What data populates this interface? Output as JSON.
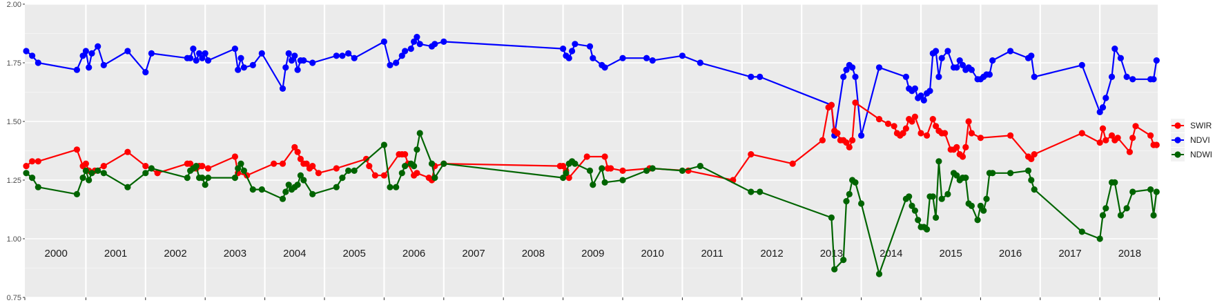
{
  "chart_data": {
    "type": "line",
    "title": "",
    "xlabel": "",
    "ylabel": "",
    "ylim": [
      0.75,
      2.0
    ],
    "xlim": [
      2000.0,
      2019.0
    ],
    "yticks": [
      "0.75",
      "1.00",
      "1.25",
      "1.50",
      "1.75",
      "2.00"
    ],
    "year_labels": [
      "2000",
      "2001",
      "2002",
      "2003",
      "2004",
      "2005",
      "2006",
      "2007",
      "2008",
      "2009",
      "2010",
      "2011",
      "2012",
      "2013",
      "2014",
      "2015",
      "2016",
      "2017",
      "2018"
    ],
    "grid": true,
    "legend_position": "right",
    "colors": {
      "SWIR": "#ff0000",
      "NDVI": "#0000ff",
      "NDWI": "#006400",
      "panel": "#ebebeb",
      "grid_major": "#ffffff"
    },
    "series": [
      {
        "name": "SWIR",
        "x": [
          2000.0,
          2000.1,
          2000.2,
          2000.85,
          2000.95,
          2001.0,
          2001.05,
          2001.15,
          2001.3,
          2001.7,
          2002.0,
          2002.2,
          2002.7,
          2002.75,
          2002.8,
          2002.85,
          2002.9,
          2002.95,
          2003.05,
          2003.5,
          2003.55,
          2003.7,
          2004.15,
          2004.3,
          2004.5,
          2004.55,
          2004.6,
          2004.65,
          2004.7,
          2004.75,
          2004.8,
          2004.9,
          2005.2,
          2005.7,
          2005.75,
          2005.85,
          2006.0,
          2006.25,
          2006.3,
          2006.35,
          2006.4,
          2006.5,
          2006.55,
          2006.75,
          2006.8,
          2006.85,
          2007.0,
          2008.95,
          2009.0,
          2009.05,
          2009.1,
          2009.4,
          2009.7,
          2009.75,
          2009.8,
          2010.0,
          2010.45,
          2011.1,
          2011.85,
          2012.15,
          2012.85,
          2013.35,
          2013.45,
          2013.5,
          2013.55,
          2013.6,
          2013.65,
          2013.7,
          2013.75,
          2013.8,
          2013.85,
          2013.9,
          2014.3,
          2014.45,
          2014.55,
          2014.6,
          2014.65,
          2014.7,
          2014.75,
          2014.8,
          2014.85,
          2014.9,
          2015.0,
          2015.1,
          2015.2,
          2015.25,
          2015.3,
          2015.35,
          2015.4,
          2015.5,
          2015.55,
          2015.6,
          2015.65,
          2015.7,
          2015.75,
          2015.8,
          2015.85,
          2016.0,
          2016.5,
          2016.8,
          2016.85,
          2016.9,
          2017.7,
          2018.0,
          2018.05,
          2018.1,
          2018.2,
          2018.25,
          2018.3,
          2018.5,
          2018.55,
          2018.6,
          2018.85,
          2018.9,
          2018.95
        ],
        "values": [
          1.31,
          1.33,
          1.33,
          1.38,
          1.31,
          1.32,
          1.29,
          1.29,
          1.31,
          1.37,
          1.31,
          1.28,
          1.32,
          1.32,
          1.3,
          1.3,
          1.31,
          1.31,
          1.3,
          1.35,
          1.28,
          1.27,
          1.32,
          1.32,
          1.39,
          1.37,
          1.34,
          1.32,
          1.32,
          1.3,
          1.31,
          1.28,
          1.3,
          1.34,
          1.31,
          1.27,
          1.27,
          1.36,
          1.36,
          1.36,
          1.32,
          1.27,
          1.28,
          1.26,
          1.25,
          1.31,
          1.32,
          1.31,
          1.31,
          1.29,
          1.26,
          1.35,
          1.35,
          1.3,
          1.3,
          1.29,
          1.3,
          1.29,
          1.25,
          1.36,
          1.32,
          1.42,
          1.56,
          1.57,
          1.46,
          1.45,
          1.42,
          1.42,
          1.41,
          1.39,
          1.42,
          1.58,
          1.51,
          1.49,
          1.48,
          1.45,
          1.44,
          1.45,
          1.47,
          1.51,
          1.5,
          1.52,
          1.45,
          1.44,
          1.51,
          1.48,
          1.46,
          1.45,
          1.45,
          1.38,
          1.38,
          1.39,
          1.36,
          1.35,
          1.39,
          1.5,
          1.45,
          1.43,
          1.44,
          1.35,
          1.34,
          1.36,
          1.45,
          1.41,
          1.47,
          1.42,
          1.44,
          1.42,
          1.43,
          1.37,
          1.43,
          1.48,
          1.44,
          1.4,
          1.4
        ]
      },
      {
        "name": "NDVI",
        "x": [
          2000.0,
          2000.1,
          2000.2,
          2000.85,
          2000.95,
          2001.0,
          2001.05,
          2001.1,
          2001.2,
          2001.3,
          2001.7,
          2002.0,
          2002.1,
          2002.7,
          2002.75,
          2002.8,
          2002.85,
          2002.9,
          2002.95,
          2003.0,
          2003.05,
          2003.5,
          2003.55,
          2003.6,
          2003.65,
          2003.8,
          2003.95,
          2004.3,
          2004.35,
          2004.4,
          2004.45,
          2004.5,
          2004.55,
          2004.6,
          2004.65,
          2004.8,
          2005.2,
          2005.3,
          2005.4,
          2005.5,
          2006.0,
          2006.1,
          2006.2,
          2006.3,
          2006.35,
          2006.45,
          2006.5,
          2006.55,
          2006.6,
          2006.8,
          2006.85,
          2007.0,
          2009.0,
          2009.05,
          2009.1,
          2009.15,
          2009.2,
          2009.45,
          2009.5,
          2009.65,
          2009.7,
          2010.0,
          2010.4,
          2010.5,
          2011.0,
          2011.3,
          2012.15,
          2012.3,
          2013.5,
          2013.55,
          2013.7,
          2013.75,
          2013.8,
          2013.85,
          2013.9,
          2014.0,
          2014.3,
          2014.75,
          2014.8,
          2014.85,
          2014.9,
          2014.95,
          2015.0,
          2015.05,
          2015.1,
          2015.15,
          2015.2,
          2015.25,
          2015.3,
          2015.35,
          2015.45,
          2015.55,
          2015.6,
          2015.65,
          2015.7,
          2015.75,
          2015.8,
          2015.85,
          2015.95,
          2016.0,
          2016.05,
          2016.1,
          2016.15,
          2016.2,
          2016.5,
          2016.8,
          2016.85,
          2016.9,
          2017.7,
          2018.0,
          2018.05,
          2018.1,
          2018.2,
          2018.25,
          2018.35,
          2018.45,
          2018.55,
          2018.85,
          2018.9,
          2018.95
        ],
        "values": [
          1.8,
          1.78,
          1.75,
          1.72,
          1.78,
          1.8,
          1.73,
          1.79,
          1.82,
          1.74,
          1.8,
          1.71,
          1.79,
          1.77,
          1.77,
          1.81,
          1.76,
          1.79,
          1.77,
          1.79,
          1.76,
          1.81,
          1.72,
          1.77,
          1.73,
          1.74,
          1.79,
          1.64,
          1.73,
          1.79,
          1.76,
          1.78,
          1.72,
          1.76,
          1.76,
          1.75,
          1.78,
          1.78,
          1.79,
          1.77,
          1.84,
          1.74,
          1.75,
          1.78,
          1.8,
          1.81,
          1.84,
          1.86,
          1.83,
          1.82,
          1.83,
          1.84,
          1.81,
          1.78,
          1.77,
          1.8,
          1.83,
          1.82,
          1.77,
          1.74,
          1.73,
          1.77,
          1.77,
          1.76,
          1.78,
          1.75,
          1.69,
          1.69,
          1.57,
          1.44,
          1.69,
          1.72,
          1.74,
          1.73,
          1.69,
          1.44,
          1.73,
          1.69,
          1.64,
          1.63,
          1.64,
          1.6,
          1.61,
          1.59,
          1.62,
          1.63,
          1.79,
          1.8,
          1.69,
          1.77,
          1.8,
          1.73,
          1.73,
          1.76,
          1.74,
          1.72,
          1.73,
          1.72,
          1.68,
          1.68,
          1.69,
          1.7,
          1.7,
          1.76,
          1.8,
          1.77,
          1.78,
          1.69,
          1.74,
          1.54,
          1.56,
          1.6,
          1.69,
          1.81,
          1.77,
          1.69,
          1.68,
          1.68,
          1.68,
          1.76
        ]
      },
      {
        "name": "NDWI",
        "x": [
          2000.0,
          2000.1,
          2000.2,
          2000.85,
          2000.95,
          2001.0,
          2001.05,
          2001.1,
          2001.2,
          2001.3,
          2001.7,
          2002.0,
          2002.1,
          2002.7,
          2002.75,
          2002.8,
          2002.85,
          2002.9,
          2002.95,
          2003.0,
          2003.05,
          2003.5,
          2003.55,
          2003.6,
          2003.65,
          2003.8,
          2003.95,
          2004.3,
          2004.35,
          2004.4,
          2004.45,
          2004.5,
          2004.55,
          2004.6,
          2004.65,
          2004.8,
          2005.2,
          2005.3,
          2005.4,
          2005.5,
          2006.0,
          2006.1,
          2006.2,
          2006.3,
          2006.35,
          2006.45,
          2006.5,
          2006.55,
          2006.6,
          2006.8,
          2006.85,
          2007.0,
          2009.0,
          2009.05,
          2009.1,
          2009.15,
          2009.2,
          2009.45,
          2009.5,
          2009.65,
          2009.7,
          2010.0,
          2010.4,
          2010.5,
          2011.0,
          2011.3,
          2012.15,
          2012.3,
          2013.5,
          2013.55,
          2013.7,
          2013.75,
          2013.8,
          2013.85,
          2013.9,
          2014.0,
          2014.3,
          2014.75,
          2014.8,
          2014.85,
          2014.9,
          2014.95,
          2015.0,
          2015.05,
          2015.1,
          2015.15,
          2015.2,
          2015.25,
          2015.3,
          2015.35,
          2015.45,
          2015.55,
          2015.6,
          2015.65,
          2015.7,
          2015.75,
          2015.8,
          2015.85,
          2015.95,
          2016.0,
          2016.05,
          2016.1,
          2016.15,
          2016.2,
          2016.5,
          2016.8,
          2016.85,
          2016.9,
          2017.7,
          2018.0,
          2018.05,
          2018.1,
          2018.2,
          2018.25,
          2018.35,
          2018.45,
          2018.55,
          2018.85,
          2018.9,
          2018.95
        ],
        "values": [
          1.28,
          1.26,
          1.22,
          1.19,
          1.26,
          1.29,
          1.25,
          1.28,
          1.29,
          1.28,
          1.22,
          1.28,
          1.3,
          1.26,
          1.29,
          1.3,
          1.31,
          1.26,
          1.26,
          1.23,
          1.26,
          1.26,
          1.3,
          1.32,
          1.29,
          1.21,
          1.21,
          1.17,
          1.2,
          1.23,
          1.21,
          1.22,
          1.23,
          1.27,
          1.25,
          1.19,
          1.22,
          1.26,
          1.29,
          1.29,
          1.4,
          1.22,
          1.22,
          1.28,
          1.31,
          1.32,
          1.31,
          1.38,
          1.45,
          1.32,
          1.26,
          1.32,
          1.26,
          1.28,
          1.32,
          1.33,
          1.32,
          1.29,
          1.23,
          1.3,
          1.24,
          1.25,
          1.29,
          1.3,
          1.29,
          1.31,
          1.2,
          1.2,
          1.09,
          0.87,
          0.91,
          1.16,
          1.19,
          1.25,
          1.24,
          1.15,
          0.85,
          1.17,
          1.18,
          1.14,
          1.12,
          1.08,
          1.05,
          1.05,
          1.04,
          1.18,
          1.18,
          1.09,
          1.33,
          1.17,
          1.19,
          1.28,
          1.27,
          1.25,
          1.26,
          1.26,
          1.15,
          1.14,
          1.08,
          1.14,
          1.12,
          1.17,
          1.28,
          1.28,
          1.28,
          1.29,
          1.25,
          1.21,
          1.03,
          1.0,
          1.1,
          1.13,
          1.24,
          1.24,
          1.1,
          1.13,
          1.2,
          1.21,
          1.1,
          1.2
        ]
      }
    ]
  }
}
